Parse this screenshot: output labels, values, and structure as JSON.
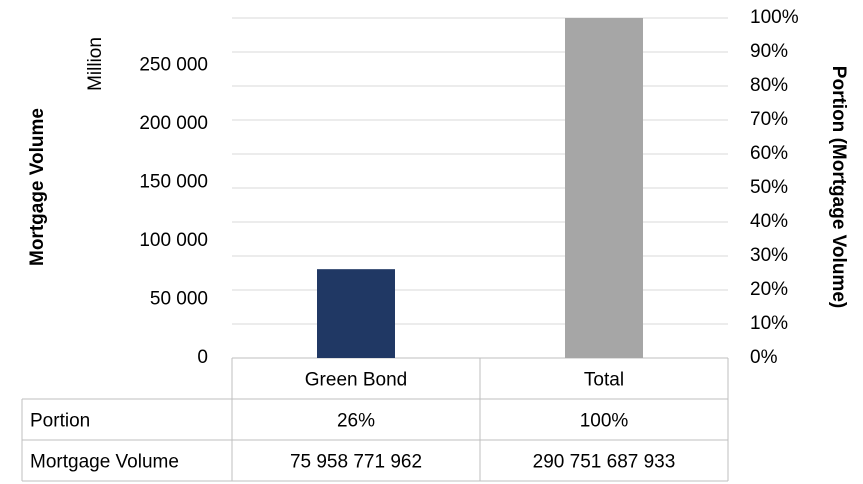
{
  "chart_data": {
    "type": "bar",
    "categories": [
      "Green Bond",
      "Total"
    ],
    "series": [
      {
        "values": [
          75958.771962,
          290751.687933
        ],
        "colors": [
          "#203864",
          "#A6A6A6"
        ]
      }
    ],
    "ylabel": "Mortgage Volume",
    "y_unit_label": "Million",
    "y2label": "Portion (Mortgage Volume)",
    "ylim": [
      0,
      290751.687933
    ],
    "yticks": [
      0,
      50000,
      100000,
      150000,
      200000,
      250000
    ],
    "ytick_labels": [
      "0",
      "50 000",
      "100 000",
      "150 000",
      "200 000",
      "250 000"
    ],
    "y2lim": [
      0,
      1
    ],
    "y2ticks": [
      0,
      0.1,
      0.2,
      0.3,
      0.4,
      0.5,
      0.6,
      0.7,
      0.8,
      0.9,
      1.0
    ],
    "y2tick_labels": [
      "0%",
      "10%",
      "20%",
      "30%",
      "40%",
      "50%",
      "60%",
      "70%",
      "80%",
      "90%",
      "100%"
    ],
    "gridlines_y": [
      0,
      0.1,
      0.2,
      0.3,
      0.4,
      0.5,
      0.6,
      0.7,
      0.8,
      0.9,
      1.0
    ],
    "grid": true,
    "data_table": {
      "rows": [
        {
          "label": "Portion",
          "values": [
            "26%",
            "100%"
          ]
        },
        {
          "label": "Mortgage Volume",
          "values": [
            "75 958 771 962",
            "290 751 687 933"
          ]
        }
      ]
    }
  }
}
